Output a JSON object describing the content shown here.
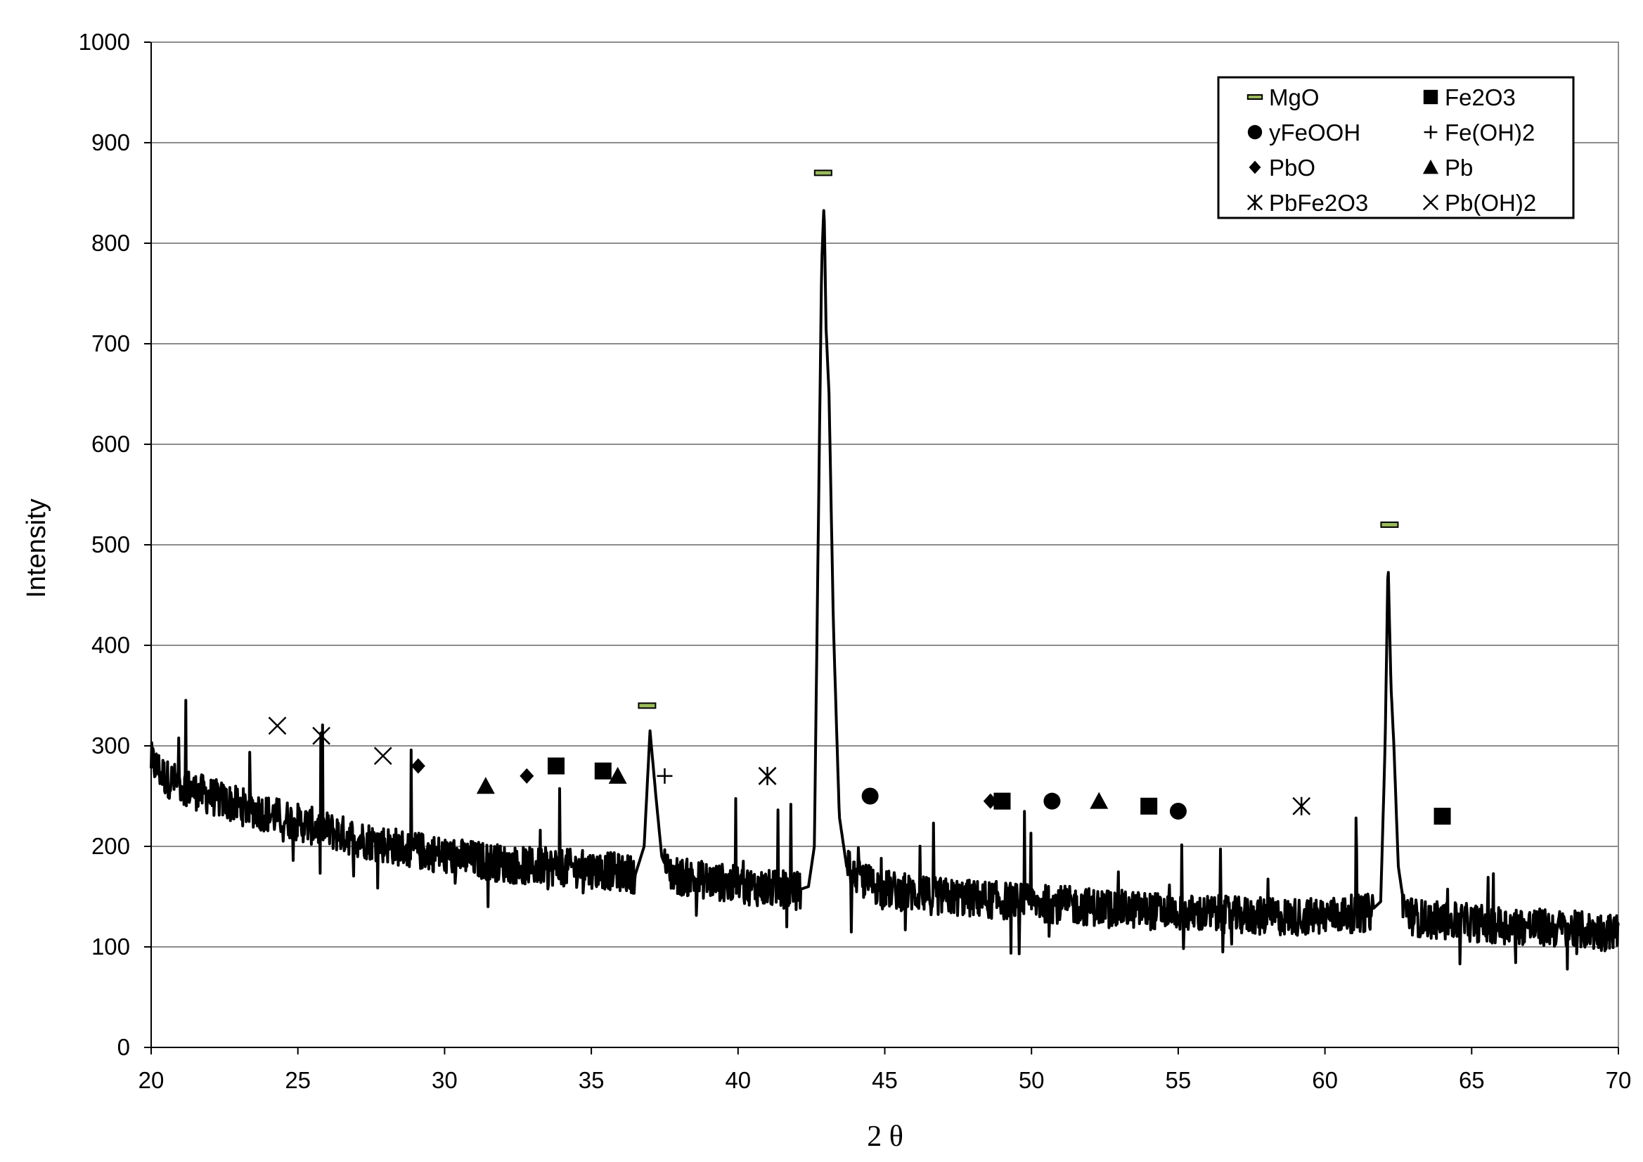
{
  "chart_data": {
    "type": "line",
    "title": "",
    "xlabel": "2 θ",
    "ylabel": "Intensity",
    "xlim": [
      20,
      70
    ],
    "ylim": [
      0,
      1000
    ],
    "x_ticks": [
      "20",
      "25",
      "30",
      "35",
      "40",
      "45",
      "50",
      "55",
      "60",
      "65",
      "70"
    ],
    "y_ticks": [
      "0",
      "100",
      "200",
      "300",
      "400",
      "500",
      "600",
      "700",
      "800",
      "900",
      "1000"
    ],
    "grid": "horizontal",
    "legend_position": "top-right",
    "series": [
      {
        "points": [
          [
            20,
            285
          ],
          [
            20.5,
            268
          ],
          [
            21,
            262
          ],
          [
            21.5,
            255
          ],
          [
            22,
            250
          ],
          [
            22.5,
            245
          ],
          [
            23,
            240
          ],
          [
            23.5,
            237
          ],
          [
            24,
            232
          ],
          [
            24.5,
            228
          ],
          [
            25,
            224
          ],
          [
            25.5,
            220
          ],
          [
            26,
            216
          ],
          [
            26.5,
            212
          ],
          [
            27,
            208
          ],
          [
            27.5,
            205
          ],
          [
            28,
            202
          ],
          [
            28.5,
            199
          ],
          [
            29,
            196
          ],
          [
            29.5,
            194
          ],
          [
            30,
            191
          ],
          [
            30.5,
            189
          ],
          [
            31,
            187
          ],
          [
            31.5,
            185
          ],
          [
            32,
            183
          ],
          [
            32.5,
            181
          ],
          [
            33,
            180
          ],
          [
            33.5,
            180
          ],
          [
            34,
            179
          ],
          [
            34.5,
            178
          ],
          [
            35,
            177
          ],
          [
            35.5,
            176
          ],
          [
            36,
            174
          ],
          [
            36.5,
            172
          ],
          [
            36.8,
            200
          ],
          [
            37.0,
            315
          ],
          [
            37.2,
            250
          ],
          [
            37.4,
            190
          ],
          [
            37.6,
            175
          ],
          [
            38,
            170
          ],
          [
            38.5,
            168
          ],
          [
            39,
            166
          ],
          [
            39.5,
            164
          ],
          [
            40,
            162
          ],
          [
            40.5,
            160
          ],
          [
            41,
            158
          ],
          [
            41.5,
            157
          ],
          [
            42,
            156
          ],
          [
            42.4,
            160
          ],
          [
            42.6,
            200
          ],
          [
            42.75,
            550
          ],
          [
            42.85,
            780
          ],
          [
            42.93,
            840
          ],
          [
            43.0,
            715
          ],
          [
            43.1,
            650
          ],
          [
            43.25,
            420
          ],
          [
            43.45,
            230
          ],
          [
            43.7,
            180
          ],
          [
            44,
            170
          ],
          [
            44.5,
            163
          ],
          [
            45,
            158
          ],
          [
            45.5,
            155
          ],
          [
            46,
            153
          ],
          [
            46.5,
            151
          ],
          [
            47,
            150
          ],
          [
            47.5,
            149
          ],
          [
            48,
            148
          ],
          [
            48.5,
            147
          ],
          [
            49,
            146
          ],
          [
            49.5,
            145
          ],
          [
            50,
            144
          ],
          [
            50.5,
            143
          ],
          [
            51,
            142
          ],
          [
            51.5,
            141
          ],
          [
            52,
            140
          ],
          [
            52.5,
            139
          ],
          [
            53,
            138
          ],
          [
            53.5,
            137
          ],
          [
            54,
            136
          ],
          [
            54.5,
            135
          ],
          [
            55,
            134
          ],
          [
            55.5,
            133
          ],
          [
            56,
            133
          ],
          [
            56.5,
            132
          ],
          [
            57,
            131
          ],
          [
            57.5,
            131
          ],
          [
            58,
            130
          ],
          [
            58.5,
            130
          ],
          [
            59,
            130
          ],
          [
            59.5,
            130
          ],
          [
            60,
            131
          ],
          [
            60.5,
            132
          ],
          [
            61,
            133
          ],
          [
            61.5,
            134
          ],
          [
            61.9,
            145
          ],
          [
            62.05,
            300
          ],
          [
            62.15,
            485
          ],
          [
            62.25,
            360
          ],
          [
            62.35,
            300
          ],
          [
            62.5,
            180
          ],
          [
            62.7,
            140
          ],
          [
            63,
            130
          ],
          [
            63.5,
            127
          ],
          [
            64,
            126
          ],
          [
            64.5,
            125
          ],
          [
            65,
            124
          ],
          [
            65.5,
            123
          ],
          [
            66,
            122
          ],
          [
            66.5,
            121
          ],
          [
            67,
            120
          ],
          [
            67.5,
            119
          ],
          [
            68,
            118
          ],
          [
            68.5,
            117
          ],
          [
            69,
            116
          ],
          [
            69.5,
            115
          ],
          [
            70,
            115
          ]
        ]
      }
    ],
    "phase_markers": [
      {
        "phase": "MgO",
        "points": [
          [
            36.9,
            340
          ],
          [
            42.9,
            870
          ],
          [
            62.2,
            520
          ]
        ]
      },
      {
        "phase": "Fe2O3",
        "points": [
          [
            33.8,
            280
          ],
          [
            35.4,
            275
          ],
          [
            49.0,
            245
          ],
          [
            54.0,
            240
          ],
          [
            64.0,
            230
          ]
        ]
      },
      {
        "phase": "yFeOOH",
        "points": [
          [
            44.5,
            250
          ],
          [
            50.7,
            245
          ],
          [
            55.0,
            235
          ]
        ]
      },
      {
        "phase": "Fe(OH)2",
        "points": [
          [
            37.5,
            270
          ]
        ]
      },
      {
        "phase": "PbO",
        "points": [
          [
            29.1,
            280
          ],
          [
            32.8,
            270
          ],
          [
            48.6,
            245
          ]
        ]
      },
      {
        "phase": "Pb",
        "points": [
          [
            31.4,
            260
          ],
          [
            35.9,
            270
          ],
          [
            52.3,
            245
          ]
        ]
      },
      {
        "phase": "PbFe2O3",
        "points": [
          [
            41.0,
            270
          ],
          [
            59.2,
            240
          ]
        ]
      },
      {
        "phase": "Pb(OH)2",
        "points": [
          [
            24.3,
            320
          ],
          [
            25.8,
            310
          ],
          [
            27.9,
            290
          ],
          [
            41.0,
            270
          ]
        ]
      }
    ],
    "legend": [
      {
        "label": "MgO",
        "marker": "dash"
      },
      {
        "label": "Fe2O3",
        "marker": "square"
      },
      {
        "label": "yFeOOH",
        "marker": "circle"
      },
      {
        "label": "Fe(OH)2",
        "marker": "plus"
      },
      {
        "label": "PbO",
        "marker": "diamond"
      },
      {
        "label": "Pb",
        "marker": "triangle"
      },
      {
        "label": "PbFe2O3",
        "marker": "asterisk"
      },
      {
        "label": "Pb(OH)2",
        "marker": "cross"
      }
    ],
    "colors": {
      "line": "#000000",
      "grid": "#8c8c8c",
      "mgo_fill": "#9bbb59",
      "axis": "#000000"
    }
  }
}
